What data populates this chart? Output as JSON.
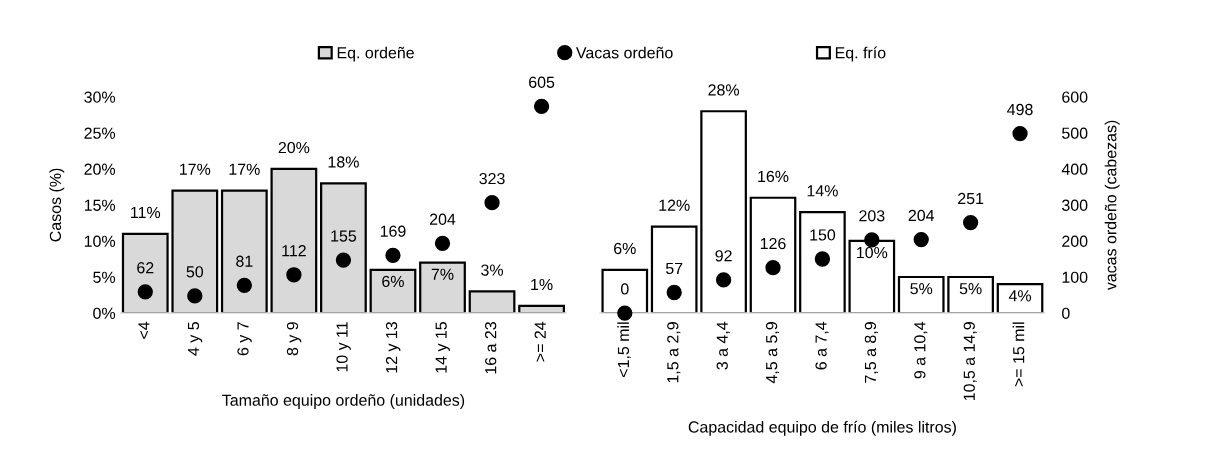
{
  "chart_data": [
    {
      "type": "bar",
      "xlabel": "Tamaño equipo ordeño (unidades)",
      "ylabel": "Casos (%)",
      "categories": [
        "<4",
        "4 y 5",
        "6 y 7",
        "8 y 9",
        "10 y 11",
        "12 y 13",
        "14 y 15",
        "16 a 23",
        ">= 24"
      ],
      "series": [
        {
          "name": "Eq. ordeñe",
          "color": "#d9d9d9",
          "values": [
            11,
            17,
            17,
            20,
            18,
            6,
            7,
            3,
            1
          ],
          "value_labels": [
            "11%",
            "17%",
            "17%",
            "20%",
            "18%",
            "6%",
            "7%",
            "3%",
            "1%"
          ]
        },
        {
          "name": "Vacas ordeño",
          "type": "scatter",
          "axis": "y2",
          "color": "#000000",
          "values": [
            62,
            50,
            81,
            112,
            155,
            169,
            204,
            323,
            605
          ],
          "value_labels": [
            "62",
            "50",
            "81",
            "112",
            "155",
            "169",
            "204",
            "323",
            "605"
          ]
        }
      ],
      "ylim": [
        0,
        30
      ],
      "yticks": [
        {
          "value": 0,
          "label": "0%"
        },
        {
          "value": 5,
          "label": "5%"
        },
        {
          "value": 10,
          "label": "10%"
        },
        {
          "value": 15,
          "label": "15%"
        },
        {
          "value": 20,
          "label": "20%"
        },
        {
          "value": 25,
          "label": "25%"
        },
        {
          "value": 30,
          "label": "30%"
        }
      ],
      "tick_labels": [
        "x",
        "y"
      ],
      "legend": "top",
      "marker": "circle",
      "grid": false
    },
    {
      "type": "bar",
      "xlabel": "Capacidad equipo de frío (miles litros)",
      "y2label": "vacas ordeño (cabezas)",
      "categories": [
        "<1,5 mil",
        "1,5 a 2,9",
        "3 a 4,4",
        "4,5 a 5,9",
        "6 a 7,4",
        "7,5 a 8,9",
        "9 a 10,4",
        "10,5 a 14,9",
        ">= 15 mil"
      ],
      "series": [
        {
          "name": "Eq. frío",
          "color": "#ffffff",
          "values": [
            6,
            12,
            28,
            16,
            14,
            10,
            5,
            5,
            4
          ],
          "value_labels": [
            "6%",
            "12%",
            "28%",
            "16%",
            "14%",
            "10%",
            "5%",
            "5%",
            "4%"
          ]
        },
        {
          "type": "scatter",
          "axis": "y2",
          "color": "#000000",
          "values": [
            0,
            57,
            92,
            126,
            150,
            203,
            204,
            251,
            498
          ],
          "value_labels": [
            "0",
            "57",
            "92",
            "126",
            "150",
            "203",
            "204",
            "251",
            "498"
          ]
        }
      ],
      "ylim": [
        0,
        30
      ],
      "y2lim": [
        0,
        600
      ],
      "y2ticks": [
        0,
        100,
        200,
        300,
        400,
        500,
        600
      ],
      "tick_labels": [
        "x",
        "y2"
      ],
      "legend": "top",
      "marker": "circle",
      "grid": false
    }
  ]
}
